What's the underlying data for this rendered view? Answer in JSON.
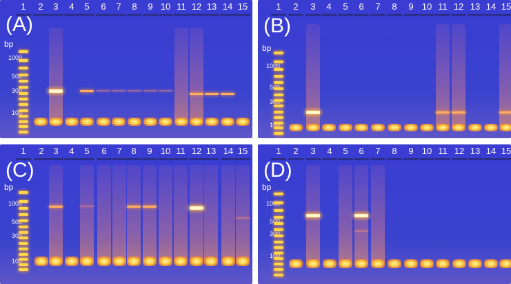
{
  "lane_numbers": [
    "1",
    "2",
    "3",
    "4",
    "5",
    "6",
    "7",
    "8",
    "9",
    "10",
    "11",
    "12",
    "13",
    "14",
    "15"
  ],
  "bp_unit": "bp",
  "colors": {
    "gel_background": "#3a3cd2",
    "band_strong": "#fff7cc",
    "band_medium": "#ffb060",
    "label_text": "#ffffff"
  },
  "panels": [
    {
      "letter": "(A)",
      "ladder_labels": [
        "1000",
        "500",
        "300",
        "100"
      ],
      "primer_dimer_lanes": [
        2,
        3,
        4,
        5,
        6,
        7,
        8,
        9,
        10,
        11,
        12,
        13,
        14,
        15
      ],
      "smear_lanes": [
        3,
        11,
        12
      ],
      "amplicon_bands": [
        {
          "lane": 3,
          "approx_bp": 300,
          "intensity": "strong"
        },
        {
          "lane": 5,
          "approx_bp": 300,
          "intensity": "medium"
        },
        {
          "lane": 6,
          "approx_bp": 300,
          "intensity": "faint"
        },
        {
          "lane": 7,
          "approx_bp": 300,
          "intensity": "faint"
        },
        {
          "lane": 8,
          "approx_bp": 300,
          "intensity": "faint"
        },
        {
          "lane": 9,
          "approx_bp": 300,
          "intensity": "faint"
        },
        {
          "lane": 10,
          "approx_bp": 300,
          "intensity": "faint"
        },
        {
          "lane": 12,
          "approx_bp": 260,
          "intensity": "medium"
        },
        {
          "lane": 13,
          "approx_bp": 260,
          "intensity": "medium"
        },
        {
          "lane": 14,
          "approx_bp": 260,
          "intensity": "medium"
        }
      ]
    },
    {
      "letter": "(B)",
      "ladder_labels": [
        "1000",
        "500",
        "300",
        "100"
      ],
      "primer_dimer_lanes": [
        2,
        3,
        4,
        5,
        6,
        7,
        8,
        9,
        10,
        11,
        12,
        13,
        14,
        15
      ],
      "smear_lanes": [
        3,
        11,
        12,
        15
      ],
      "amplicon_bands": [
        {
          "lane": 3,
          "approx_bp": 200,
          "intensity": "strong"
        },
        {
          "lane": 11,
          "approx_bp": 200,
          "intensity": "medium"
        },
        {
          "lane": 12,
          "approx_bp": 200,
          "intensity": "medium"
        },
        {
          "lane": 15,
          "approx_bp": 200,
          "intensity": "medium"
        }
      ]
    },
    {
      "letter": "(C)",
      "ladder_labels": [
        "1000",
        "500",
        "300",
        "100"
      ],
      "primer_dimer_lanes": [
        2,
        3,
        4,
        5,
        6,
        7,
        8,
        9,
        10,
        11,
        12,
        13,
        14,
        15
      ],
      "smear_lanes": [
        3,
        5,
        6,
        7,
        8,
        9,
        10,
        11,
        12,
        13,
        14,
        15
      ],
      "amplicon_bands": [
        {
          "lane": 3,
          "approx_bp": 900,
          "intensity": "medium"
        },
        {
          "lane": 5,
          "approx_bp": 900,
          "intensity": "faint"
        },
        {
          "lane": 8,
          "approx_bp": 900,
          "intensity": "medium"
        },
        {
          "lane": 9,
          "approx_bp": 900,
          "intensity": "medium"
        },
        {
          "lane": 12,
          "approx_bp": 850,
          "intensity": "strong"
        },
        {
          "lane": 15,
          "approx_bp": 600,
          "intensity": "faint"
        }
      ]
    },
    {
      "letter": "(D)",
      "ladder_labels": [
        "1000",
        "500",
        "300",
        "100"
      ],
      "primer_dimer_lanes": [
        2,
        3,
        4,
        5,
        6,
        7,
        8,
        9,
        10,
        11,
        12,
        13,
        14,
        15
      ],
      "smear_lanes": [
        3,
        5,
        6,
        7
      ],
      "amplicon_bands": [
        {
          "lane": 3,
          "approx_bp": 600,
          "intensity": "strong"
        },
        {
          "lane": 6,
          "approx_bp": 600,
          "intensity": "strong"
        },
        {
          "lane": 6,
          "approx_bp": 350,
          "intensity": "faint"
        }
      ]
    }
  ]
}
